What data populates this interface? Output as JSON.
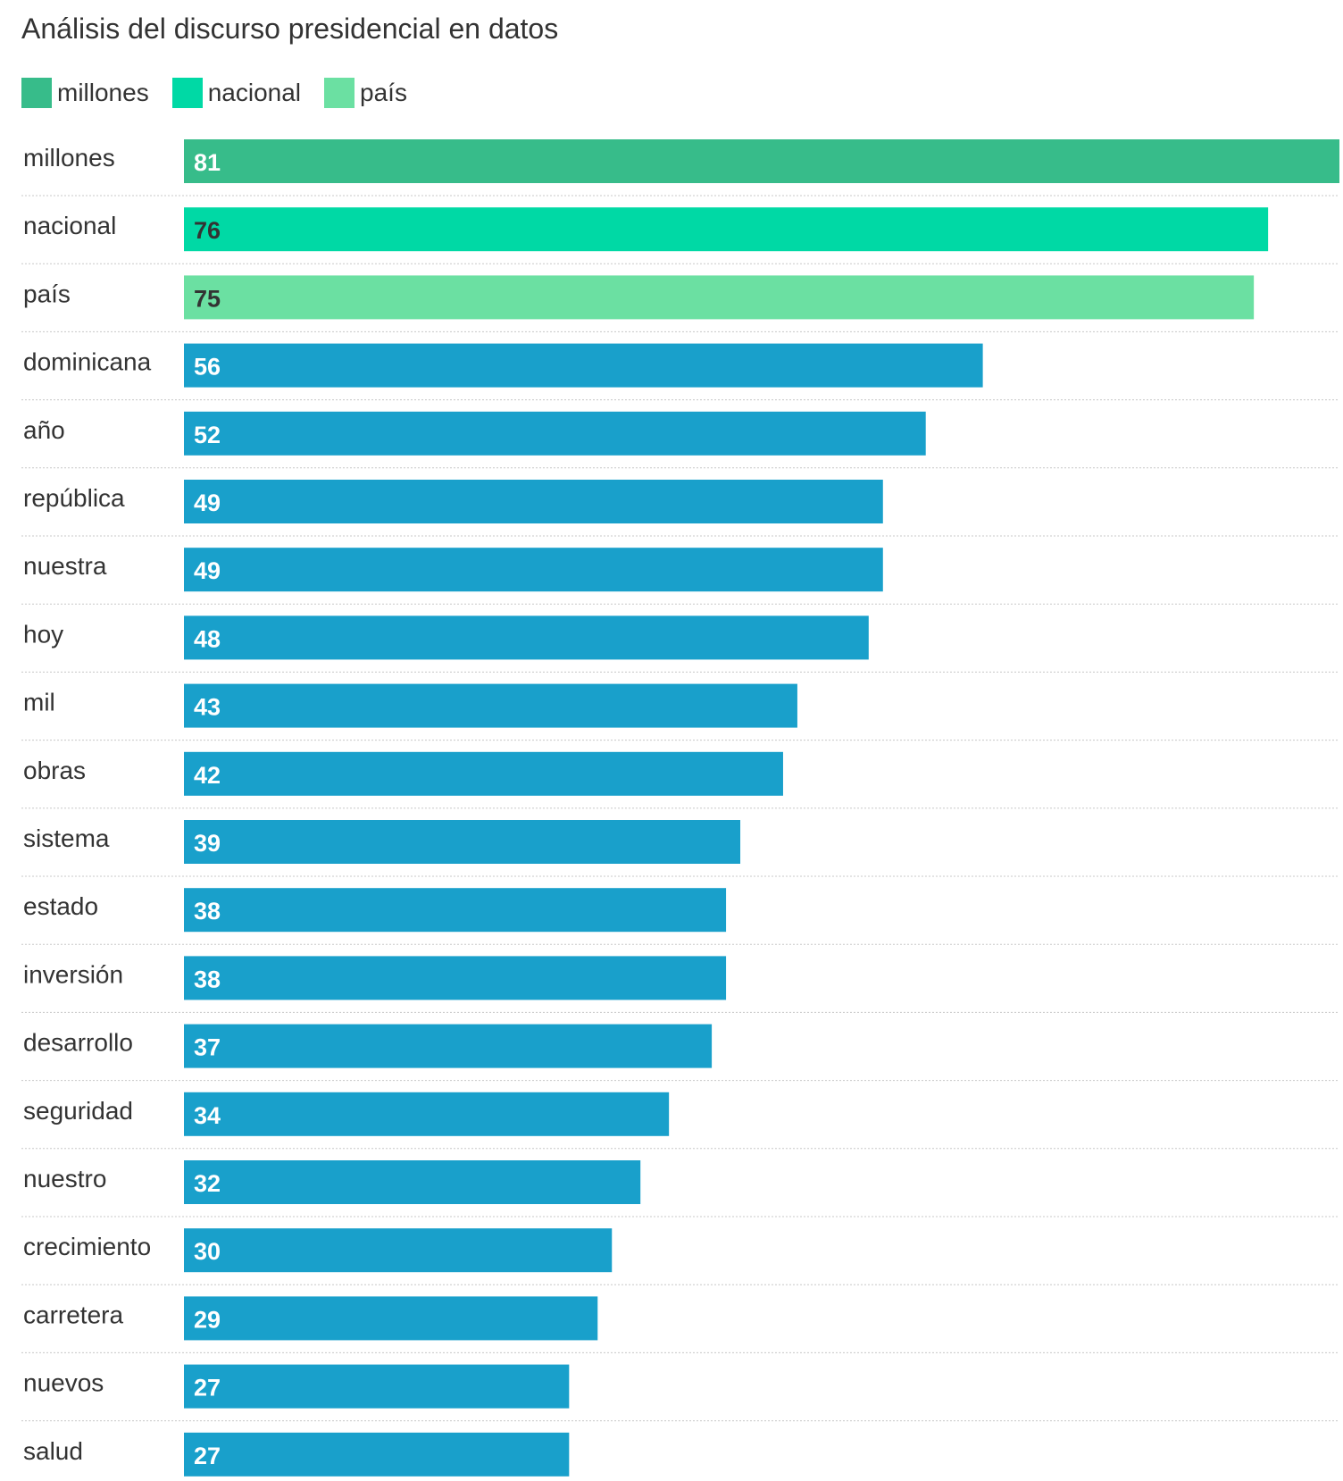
{
  "chart_data": {
    "type": "bar",
    "orientation": "horizontal",
    "title": "Análisis del discurso presidencial en datos",
    "xlabel": "",
    "ylabel": "",
    "xlim": [
      0,
      81
    ],
    "legend": [
      {
        "label": "millones",
        "color": "#37bc8a"
      },
      {
        "label": "nacional",
        "color": "#00d9a5"
      },
      {
        "label": "país",
        "color": "#6be0a2"
      }
    ],
    "default_color": "#19a0cb",
    "categories": [
      "millones",
      "nacional",
      "país",
      "dominicana",
      "año",
      "república",
      "nuestra",
      "hoy",
      "mil",
      "obras",
      "sistema",
      "estado",
      "inversión",
      "desarrollo",
      "seguridad",
      "nuestro",
      "crecimiento",
      "carretera",
      "nuevos",
      "salud"
    ],
    "values": [
      81,
      76,
      75,
      56,
      52,
      49,
      49,
      48,
      43,
      42,
      39,
      38,
      38,
      37,
      34,
      32,
      30,
      29,
      27,
      27
    ],
    "colors": [
      "#37bc8a",
      "#00d9a5",
      "#6be0a2",
      "#19a0cb",
      "#19a0cb",
      "#19a0cb",
      "#19a0cb",
      "#19a0cb",
      "#19a0cb",
      "#19a0cb",
      "#19a0cb",
      "#19a0cb",
      "#19a0cb",
      "#19a0cb",
      "#19a0cb",
      "#19a0cb",
      "#19a0cb",
      "#19a0cb",
      "#19a0cb",
      "#19a0cb"
    ],
    "label_colors": [
      "#ffffff",
      "#333333",
      "#333333",
      "#ffffff",
      "#ffffff",
      "#ffffff",
      "#ffffff",
      "#ffffff",
      "#ffffff",
      "#ffffff",
      "#ffffff",
      "#ffffff",
      "#ffffff",
      "#ffffff",
      "#ffffff",
      "#ffffff",
      "#ffffff",
      "#ffffff",
      "#ffffff",
      "#ffffff"
    ]
  }
}
